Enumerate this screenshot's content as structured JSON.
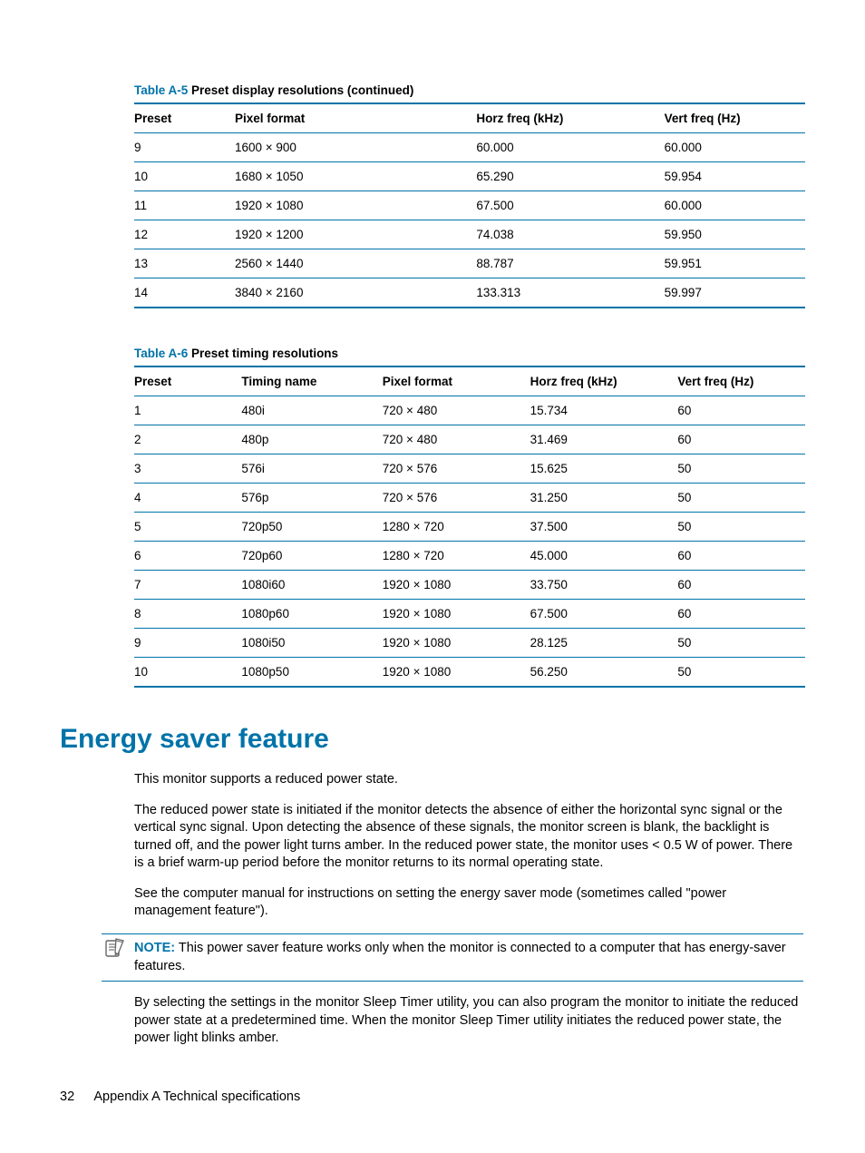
{
  "colors": {
    "accent": "#0073a8",
    "text": "#000000",
    "bg": "#ffffff"
  },
  "tableA5": {
    "caption_num": "Table A-5",
    "caption_title": "Preset display resolutions (continued)",
    "columns": [
      "Preset",
      "Pixel format",
      "Horz freq (kHz)",
      "Vert freq (Hz)"
    ],
    "col_widths_pct": [
      15,
      36,
      28,
      21
    ],
    "rows": [
      [
        "9",
        "1600 × 900",
        "60.000",
        "60.000"
      ],
      [
        "10",
        "1680 × 1050",
        "65.290",
        "59.954"
      ],
      [
        "11",
        "1920 × 1080",
        "67.500",
        "60.000"
      ],
      [
        "12",
        "1920 × 1200",
        "74.038",
        "59.950"
      ],
      [
        "13",
        "2560 × 1440",
        "88.787",
        "59.951"
      ],
      [
        "14",
        "3840 × 2160",
        "133.313",
        "59.997"
      ]
    ]
  },
  "tableA6": {
    "caption_num": "Table A-6",
    "caption_title": "Preset timing resolutions",
    "columns": [
      "Preset",
      "Timing name",
      "Pixel format",
      "Horz freq (kHz)",
      "Vert freq (Hz)"
    ],
    "col_widths_pct": [
      16,
      21,
      22,
      22,
      19
    ],
    "rows": [
      [
        "1",
        "480i",
        "720 × 480",
        "15.734",
        "60"
      ],
      [
        "2",
        "480p",
        "720 × 480",
        "31.469",
        "60"
      ],
      [
        "3",
        "576i",
        "720 × 576",
        "15.625",
        "50"
      ],
      [
        "4",
        "576p",
        "720 × 576",
        "31.250",
        "50"
      ],
      [
        "5",
        "720p50",
        "1280 × 720",
        "37.500",
        "50"
      ],
      [
        "6",
        "720p60",
        "1280 × 720",
        "45.000",
        "60"
      ],
      [
        "7",
        "1080i60",
        "1920 × 1080",
        "33.750",
        "60"
      ],
      [
        "8",
        "1080p60",
        "1920 × 1080",
        "67.500",
        "60"
      ],
      [
        "9",
        "1080i50",
        "1920 × 1080",
        "28.125",
        "50"
      ],
      [
        "10",
        "1080p50",
        "1920 × 1080",
        "56.250",
        "50"
      ]
    ]
  },
  "section": {
    "heading": "Energy saver feature",
    "p1": "This monitor supports a reduced power state.",
    "p2": "The reduced power state is initiated if the monitor detects the absence of either the horizontal sync signal or the vertical sync signal. Upon detecting the absence of these signals, the monitor screen is blank, the backlight is turned off, and the power light turns amber. In the reduced power state, the monitor uses < 0.5 W of power. There is a brief warm-up period before the monitor returns to its normal operating state.",
    "p3": "See the computer manual for instructions on setting the energy saver mode (sometimes called \"power management feature\").",
    "note_label": "NOTE:",
    "note_text": "This power saver feature works only when the monitor is connected to a computer that has energy-saver features.",
    "p4": "By selecting the settings in the monitor Sleep Timer utility, you can also program the monitor to initiate the reduced power state at a predetermined time. When the monitor Sleep Timer utility initiates the reduced power state, the power light blinks amber."
  },
  "footer": {
    "page_num": "32",
    "appendix": "Appendix A   Technical specifications"
  }
}
